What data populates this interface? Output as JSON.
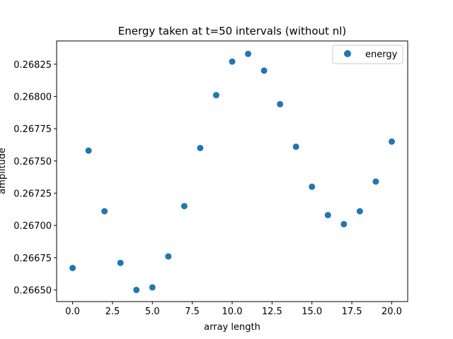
{
  "chart_data": {
    "type": "scatter",
    "title": "Energy taken at t=50 intervals (without nl)",
    "xlabel": "array length",
    "ylabel": "amplitude",
    "xlim": [
      -1.0,
      21.0
    ],
    "ylim": [
      0.26641,
      0.26843
    ],
    "xticks": [
      0.0,
      2.5,
      5.0,
      7.5,
      10.0,
      12.5,
      15.0,
      17.5,
      20.0
    ],
    "xtick_labels": [
      "0.0",
      "2.5",
      "5.0",
      "7.5",
      "10.0",
      "12.5",
      "15.0",
      "17.5",
      "20.0"
    ],
    "yticks": [
      0.2665,
      0.26675,
      0.267,
      0.26725,
      0.2675,
      0.26775,
      0.268,
      0.26825
    ],
    "ytick_labels": [
      "0.26650",
      "0.26675",
      "0.26700",
      "0.26725",
      "0.26750",
      "0.26775",
      "0.26800",
      "0.26825"
    ],
    "grid": false,
    "legend_position": "top-right",
    "series": [
      {
        "name": "energy",
        "color": "#1f77b4",
        "x": [
          0,
          1,
          2,
          3,
          4,
          5,
          6,
          7,
          8,
          9,
          10,
          11,
          12,
          13,
          14,
          15,
          16,
          17,
          18,
          19,
          20
        ],
        "y": [
          0.26667,
          0.26758,
          0.26711,
          0.26671,
          0.2665,
          0.26652,
          0.26676,
          0.26715,
          0.2676,
          0.26801,
          0.26827,
          0.26833,
          0.2682,
          0.26794,
          0.26761,
          0.2673,
          0.26708,
          0.26701,
          0.26711,
          0.26734,
          0.26765
        ]
      }
    ]
  }
}
